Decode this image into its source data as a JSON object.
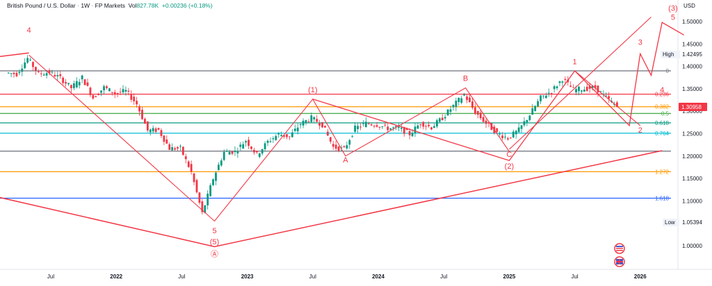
{
  "legend": {
    "symbol": "British Pound / U.S. Dollar",
    "interval": "1W",
    "source": "FP Markets",
    "vol_label": "Vol",
    "volume": "827.78K",
    "change": "+0.00236 (+0.18%)"
  },
  "axis": {
    "currency": "USD",
    "high_label": "High",
    "high_value": "1.42495",
    "low_label": "Low",
    "low_value": "1.05394",
    "last_price": "1.30958",
    "price_ticks": [
      "1.50000",
      "1.45000",
      "1.40000",
      "1.35000",
      "1.30000",
      "1.25000",
      "1.20000",
      "1.15000",
      "1.10000",
      "1.00000"
    ],
    "time_ticks": [
      "Jul",
      "2022",
      "Jul",
      "2023",
      "Jul",
      "2024",
      "Jul",
      "2025",
      "Jul",
      "2026"
    ]
  },
  "colors": {
    "up": "#089981",
    "down": "#f23645",
    "wave": "#f23645"
  },
  "chart_data": {
    "type": "candlestick",
    "title": "British Pound / U.S. Dollar",
    "interval": "1W",
    "y_range": [
      0.96,
      1.52
    ],
    "x_range": [
      "2021-03",
      "2026-02"
    ],
    "series": [
      {
        "date": "2021-03",
        "close": 1.386
      },
      {
        "date": "2021-04",
        "close": 1.383
      },
      {
        "date": "2021-05",
        "close": 1.418
      },
      {
        "date": "2021-06",
        "close": 1.383
      },
      {
        "date": "2021-07",
        "close": 1.387
      },
      {
        "date": "2021-08",
        "close": 1.374
      },
      {
        "date": "2021-09",
        "close": 1.352
      },
      {
        "date": "2021-10",
        "close": 1.375
      },
      {
        "date": "2021-11",
        "close": 1.33
      },
      {
        "date": "2021-12",
        "close": 1.353
      },
      {
        "date": "2022-01",
        "close": 1.34
      },
      {
        "date": "2022-02",
        "close": 1.345
      },
      {
        "date": "2022-03",
        "close": 1.316
      },
      {
        "date": "2022-04",
        "close": 1.257
      },
      {
        "date": "2022-05",
        "close": 1.258
      },
      {
        "date": "2022-06",
        "close": 1.217
      },
      {
        "date": "2022-07",
        "close": 1.217
      },
      {
        "date": "2022-08",
        "close": 1.164
      },
      {
        "date": "2022-09",
        "close": 1.072
      },
      {
        "date": "2022-10",
        "close": 1.15
      },
      {
        "date": "2022-11",
        "close": 1.209
      },
      {
        "date": "2022-12",
        "close": 1.21
      },
      {
        "date": "2023-01",
        "close": 1.235
      },
      {
        "date": "2023-02",
        "close": 1.203
      },
      {
        "date": "2023-03",
        "close": 1.232
      },
      {
        "date": "2023-04",
        "close": 1.249
      },
      {
        "date": "2023-05",
        "close": 1.243
      },
      {
        "date": "2023-06",
        "close": 1.272
      },
      {
        "date": "2023-07",
        "close": 1.285
      },
      {
        "date": "2023-08",
        "close": 1.27
      },
      {
        "date": "2023-09",
        "close": 1.22
      },
      {
        "date": "2023-10",
        "close": 1.215
      },
      {
        "date": "2023-11",
        "close": 1.262
      },
      {
        "date": "2023-12",
        "close": 1.273
      },
      {
        "date": "2024-01",
        "close": 1.27
      },
      {
        "date": "2024-02",
        "close": 1.262
      },
      {
        "date": "2024-03",
        "close": 1.262
      },
      {
        "date": "2024-04",
        "close": 1.249
      },
      {
        "date": "2024-05",
        "close": 1.274
      },
      {
        "date": "2024-06",
        "close": 1.264
      },
      {
        "date": "2024-07",
        "close": 1.285
      },
      {
        "date": "2024-08",
        "close": 1.312
      },
      {
        "date": "2024-09",
        "close": 1.337
      },
      {
        "date": "2024-10",
        "close": 1.298
      },
      {
        "date": "2024-11",
        "close": 1.273
      },
      {
        "date": "2024-12",
        "close": 1.251
      },
      {
        "date": "2025-01",
        "close": 1.24
      },
      {
        "date": "2025-02",
        "close": 1.258
      },
      {
        "date": "2025-03",
        "close": 1.292
      },
      {
        "date": "2025-04",
        "close": 1.33
      },
      {
        "date": "2025-05",
        "close": 1.345
      },
      {
        "date": "2025-06",
        "close": 1.372
      },
      {
        "date": "2025-07",
        "close": 1.348
      },
      {
        "date": "2025-08",
        "close": 1.35
      },
      {
        "date": "2025-09",
        "close": 1.353
      },
      {
        "date": "2025-10",
        "close": 1.33
      },
      {
        "date": "2025-11",
        "close": 1.31
      }
    ],
    "fib_levels": [
      {
        "label": "0",
        "value": 1.39,
        "color": "#787b86"
      },
      {
        "label": "0.236",
        "value": 1.338,
        "color": "#f23645"
      },
      {
        "label": "0.382",
        "value": 1.31,
        "color": "#ff9800"
      },
      {
        "label": "0.5",
        "value": 1.295,
        "color": "#4caf50"
      },
      {
        "label": "0.618",
        "value": 1.274,
        "color": "#089981"
      },
      {
        "label": "0.764",
        "value": 1.251,
        "color": "#00bcd4"
      },
      {
        "label": "",
        "value": 1.211,
        "color": "#787b86"
      },
      {
        "label": "1.272",
        "value": 1.165,
        "color": "#ff9800"
      },
      {
        "label": "1.618",
        "value": 1.106,
        "color": "#2962ff"
      }
    ],
    "wave_labels": [
      "4",
      "5",
      "(5)",
      "Ⓐ",
      "(1)",
      "A",
      "B",
      "C",
      "(2)",
      "1",
      "2",
      "3",
      "4",
      "5",
      "(3)"
    ]
  }
}
